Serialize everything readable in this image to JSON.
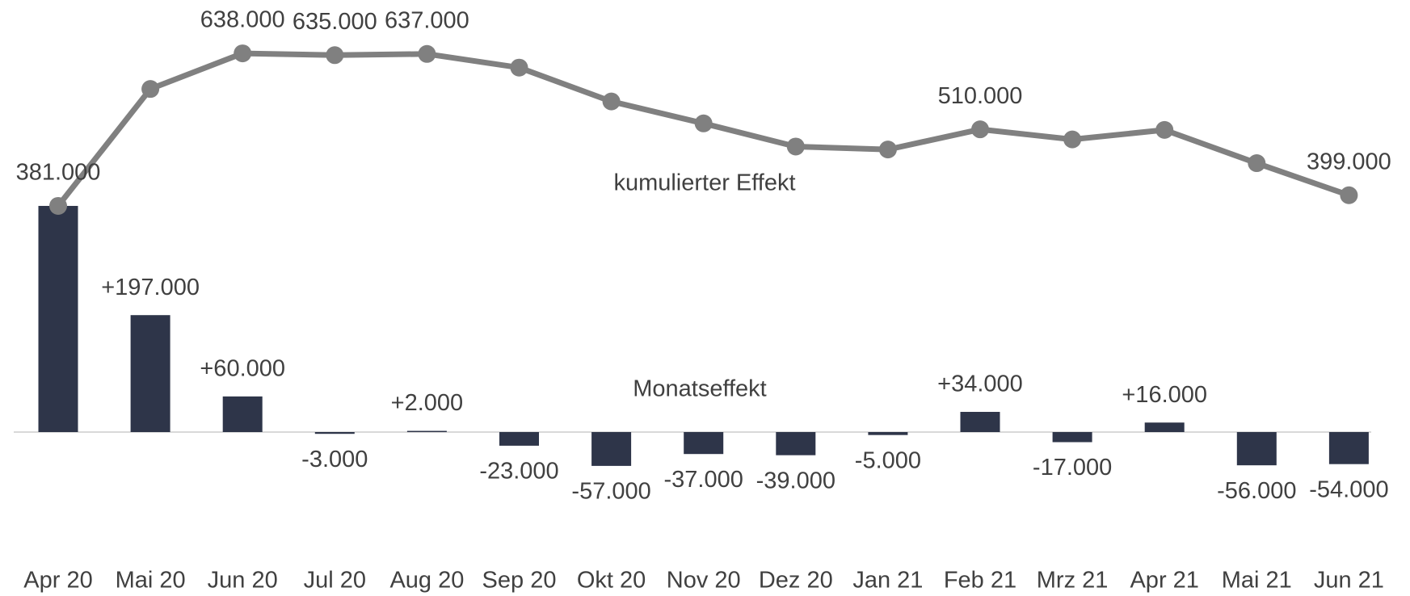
{
  "chart_data": {
    "type": "bar+line",
    "categories": [
      "Apr 20",
      "Mai 20",
      "Jun 20",
      "Jul 20",
      "Aug 20",
      "Sep 20",
      "Okt 20",
      "Nov 20",
      "Dez 20",
      "Jan 21",
      "Feb 21",
      "Mrz 21",
      "Apr 21",
      "Mai 21",
      "Jun 21"
    ],
    "series": [
      {
        "name": "Monatseffekt",
        "type": "bar",
        "color": "#2e3549",
        "values": [
          381000,
          197000,
          60000,
          -3000,
          2000,
          -23000,
          -57000,
          -37000,
          -39000,
          -5000,
          34000,
          -17000,
          16000,
          -56000,
          -54000
        ],
        "value_labels": [
          null,
          "+197.000",
          "+60.000",
          "-3.000",
          "+2.000",
          "-23.000",
          "-57.000",
          "-37.000",
          "-39.000",
          "-5.000",
          "+34.000",
          "-17.000",
          "+16.000",
          "-56.000",
          "-54.000"
        ]
      },
      {
        "name": "kumulierter Effekt",
        "type": "line",
        "color": "#808080",
        "values": [
          381000,
          578000,
          638000,
          635000,
          637000,
          614000,
          557000,
          520000,
          481000,
          476000,
          510000,
          493000,
          509000,
          453000,
          399000
        ],
        "value_labels": [
          "381.000",
          null,
          "638.000",
          "635.000",
          "637.000",
          null,
          null,
          null,
          null,
          null,
          "510.000",
          null,
          null,
          null,
          "399.000"
        ]
      }
    ],
    "ylim": [
      -100000,
      700000
    ]
  }
}
